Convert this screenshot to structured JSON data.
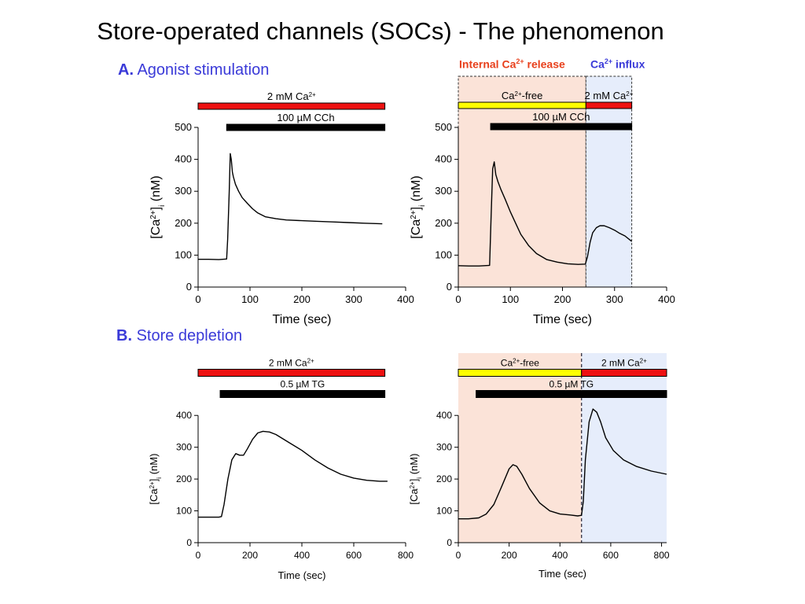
{
  "slide_title": "Store-operated channels (SOCs) - The phenomenon",
  "section_a": {
    "letter": "A.",
    "text": "Agonist stimulation"
  },
  "section_b": {
    "letter": "B.",
    "text": "Store depletion"
  },
  "phase_labels": {
    "release_pre": "Internal Ca",
    "release_sup": "2+",
    "release_post": " release",
    "influx_pre": "Ca",
    "influx_sup": "2+",
    "influx_post": " influx"
  },
  "colors": {
    "calcium_bar": "#ee1111",
    "free_bar": "#ffff00",
    "drug_bar": "#000000",
    "release_shade": "#fbe3d8",
    "influx_shade": "#e6edfb",
    "release_text": "#e8401c",
    "influx_text": "#3a3ad8",
    "section_text": "#3a3ad8"
  },
  "chart_data": [
    {
      "id": "A-left",
      "type": "line",
      "xlabel": "Time (sec)",
      "ylabel": "[Ca2+]i (nM)",
      "xlim": [
        0,
        400
      ],
      "ylim": [
        0,
        500
      ],
      "xticks": [
        0,
        100,
        200,
        300,
        400
      ],
      "yticks": [
        0,
        100,
        200,
        300,
        400,
        500
      ],
      "bars": [
        {
          "label": "2 mM Ca",
          "sup": "2+",
          "color": "red",
          "x": [
            0,
            360
          ]
        },
        {
          "label": "100 µM CCh",
          "color": "black",
          "x": [
            55,
            360
          ]
        }
      ],
      "series": [
        {
          "x": [
            0,
            20,
            40,
            55,
            57,
            60,
            62,
            64,
            66,
            68,
            72,
            78,
            85,
            95,
            105,
            115,
            130,
            150,
            170,
            200,
            230,
            260,
            290,
            320,
            355
          ],
          "y": [
            87,
            87,
            86,
            88,
            150,
            300,
            418,
            400,
            360,
            345,
            322,
            300,
            280,
            262,
            245,
            232,
            220,
            214,
            210,
            208,
            206,
            204,
            202,
            200,
            198
          ]
        }
      ]
    },
    {
      "id": "A-right",
      "type": "line",
      "xlabel": "Time (sec)",
      "ylabel": "[Ca2+]i (nM)",
      "xlim": [
        0,
        400
      ],
      "ylim": [
        0,
        500
      ],
      "xticks": [
        0,
        100,
        200,
        300,
        400
      ],
      "yticks": [
        0,
        100,
        200,
        300,
        400,
        500
      ],
      "shading": [
        {
          "phase": "release",
          "x": [
            0,
            245
          ]
        },
        {
          "phase": "influx",
          "x": [
            245,
            333
          ]
        }
      ],
      "bars": [
        {
          "label": "Ca",
          "sup": "2+",
          "post": "-free",
          "color": "yellow",
          "x": [
            0,
            245
          ]
        },
        {
          "label": "2 mM Ca",
          "sup": "2+",
          "color": "red",
          "x": [
            245,
            333
          ]
        },
        {
          "label": "100 µM CCh",
          "color": "black",
          "x": [
            62,
            333
          ]
        }
      ],
      "series": [
        {
          "x": [
            0,
            20,
            40,
            60,
            63,
            66,
            69,
            72,
            76,
            82,
            90,
            100,
            110,
            120,
            135,
            150,
            170,
            190,
            210,
            230,
            244,
            248,
            253,
            258,
            265,
            272,
            280,
            290,
            300,
            310,
            320,
            333
          ],
          "y": [
            67,
            66,
            66,
            68,
            220,
            370,
            392,
            352,
            330,
            305,
            275,
            235,
            200,
            165,
            130,
            105,
            86,
            78,
            73,
            71,
            72,
            95,
            140,
            170,
            186,
            192,
            192,
            186,
            178,
            168,
            160,
            143
          ]
        }
      ]
    },
    {
      "id": "B-left",
      "type": "line",
      "xlabel": "Time (sec)",
      "ylabel": "[Ca2+]i (nM)",
      "xlim": [
        0,
        800
      ],
      "ylim": [
        0,
        450
      ],
      "xticks": [
        0,
        200,
        400,
        600,
        800
      ],
      "yticks": [
        0,
        100,
        200,
        300,
        400
      ],
      "bars": [
        {
          "label": "2 mM Ca",
          "sup": "2+",
          "color": "red",
          "x": [
            0,
            720
          ]
        },
        {
          "label": "0.5 µM TG",
          "color": "black",
          "x": [
            85,
            720
          ]
        }
      ],
      "series": [
        {
          "x": [
            0,
            40,
            80,
            90,
            100,
            115,
            130,
            145,
            160,
            175,
            190,
            210,
            230,
            250,
            275,
            300,
            350,
            400,
            450,
            500,
            550,
            600,
            650,
            700,
            730
          ],
          "y": [
            80,
            80,
            80,
            82,
            120,
            200,
            260,
            280,
            275,
            275,
            295,
            325,
            345,
            350,
            348,
            340,
            315,
            290,
            260,
            235,
            215,
            203,
            196,
            193,
            193
          ]
        }
      ]
    },
    {
      "id": "B-right",
      "type": "line",
      "xlabel": "Time (sec)",
      "ylabel": "[Ca2+]i (nM)",
      "xlim": [
        0,
        820
      ],
      "ylim": [
        0,
        450
      ],
      "xticks": [
        0,
        200,
        400,
        600,
        800
      ],
      "yticks": [
        0,
        100,
        200,
        300,
        400
      ],
      "shading": [
        {
          "phase": "release",
          "x": [
            0,
            485
          ]
        },
        {
          "phase": "influx",
          "x": [
            485,
            820
          ]
        }
      ],
      "bars": [
        {
          "label": "Ca",
          "sup": "2+",
          "post": "-free",
          "color": "yellow",
          "x": [
            0,
            485
          ]
        },
        {
          "label": "2 mM Ca",
          "sup": "2+",
          "color": "red",
          "x": [
            485,
            820
          ]
        },
        {
          "label": "0.5 µM TG",
          "color": "black",
          "x": [
            70,
            820
          ]
        }
      ],
      "series": [
        {
          "x": [
            0,
            40,
            80,
            110,
            140,
            170,
            200,
            215,
            230,
            250,
            280,
            320,
            360,
            400,
            440,
            470,
            485,
            492,
            500,
            515,
            530,
            545,
            560,
            580,
            610,
            650,
            700,
            760,
            820
          ],
          "y": [
            75,
            75,
            78,
            90,
            120,
            175,
            232,
            245,
            240,
            215,
            170,
            125,
            100,
            90,
            87,
            84,
            86,
            130,
            260,
            380,
            420,
            410,
            380,
            330,
            290,
            260,
            240,
            225,
            215
          ]
        }
      ]
    }
  ]
}
